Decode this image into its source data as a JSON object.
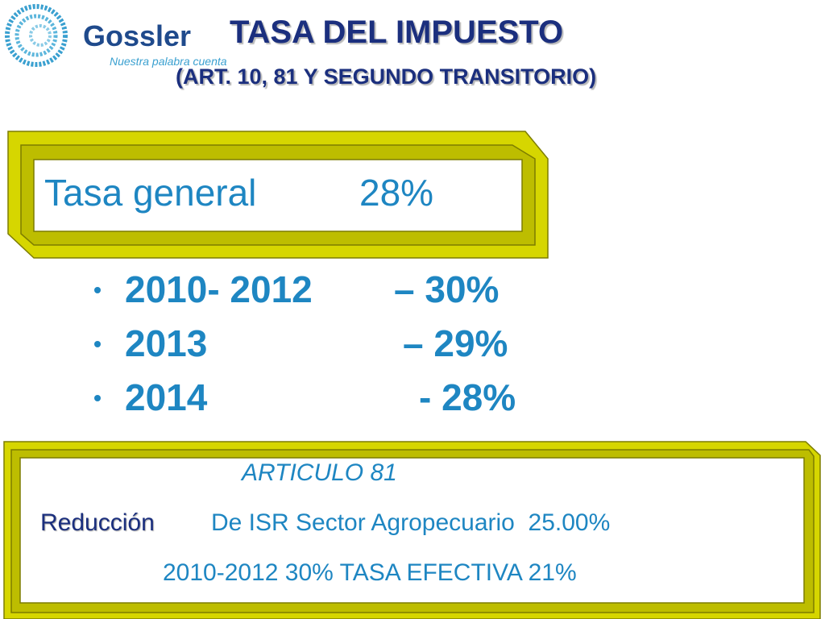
{
  "logo": {
    "name": "Gossler",
    "tagline": "Nuestra palabra cuenta"
  },
  "header": {
    "title": "TASA DEL IMPUESTO",
    "subtitle": "(ART. 10, 81 Y SEGUNDO TRANSITORIO)"
  },
  "general_box": {
    "label": "Tasa general",
    "rate": "28%"
  },
  "bullets": [
    {
      "period": "2010- 2012",
      "rate": "– 30%"
    },
    {
      "period": "2013",
      "rate": "– 29%"
    },
    {
      "period": "2014",
      "rate": "- 28%"
    }
  ],
  "article_box": {
    "heading": "ARTICULO 81",
    "keyword": "Reducción",
    "text": "De ISR Sector Agropecuario  25.00%",
    "note": "2010-2012 30% TASA EFECTIVA 21%"
  }
}
